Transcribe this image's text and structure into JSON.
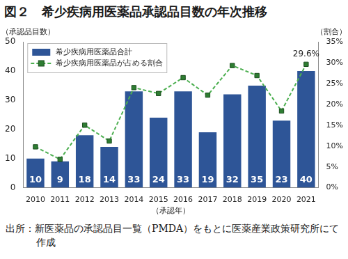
{
  "chart_data": {
    "type": "bar",
    "title": "図２　希少疾病用医薬品承認品目数の年次推移",
    "source": "出所：新医薬品の承認品目一覧（PMDA）をもとに医薬産業政策研究所にて作成",
    "x_label": "（承認年）",
    "y_label": "（承認品目数）",
    "y2_label": "（割合）",
    "categories": [
      "2010",
      "2011",
      "2012",
      "2013",
      "2014",
      "2015",
      "2016",
      "2017",
      "2018",
      "2019",
      "2020",
      "2021"
    ],
    "series": [
      {
        "name": "希少疾病用医薬品合計",
        "type": "bar",
        "color": "#2e5597",
        "values": [
          10,
          9,
          18,
          14,
          33,
          24,
          33,
          19,
          32,
          35,
          23,
          40
        ],
        "data_labels": true
      },
      {
        "name": "希少疾病用医薬品が占める割合",
        "type": "line",
        "axis": "y2",
        "color": "#4caf50",
        "marker": "square",
        "line_style": "dashed",
        "values": [
          9.8,
          6.8,
          15.0,
          11.2,
          24.0,
          22.6,
          26.4,
          22.2,
          29.3,
          26.9,
          18.4,
          29.6
        ]
      }
    ],
    "ylim": [
      0,
      50
    ],
    "yticks": [
      0,
      10,
      20,
      30,
      40,
      50
    ],
    "y2lim": [
      0,
      35
    ],
    "y2ticks": [
      {
        "value": 0,
        "label": "0%"
      },
      {
        "value": 5,
        "label": "5%"
      },
      {
        "value": 10,
        "label": "10%"
      },
      {
        "value": 15,
        "label": "15%"
      },
      {
        "value": 20,
        "label": "20%"
      },
      {
        "value": 25,
        "label": "25%"
      },
      {
        "value": 30,
        "label": "30%"
      },
      {
        "value": 35,
        "label": "35%"
      }
    ],
    "grid": false,
    "legend": "upper left",
    "annotations": [
      {
        "x": "2021",
        "y": 29.6,
        "axis": "y2",
        "text": "29.6%"
      }
    ]
  }
}
